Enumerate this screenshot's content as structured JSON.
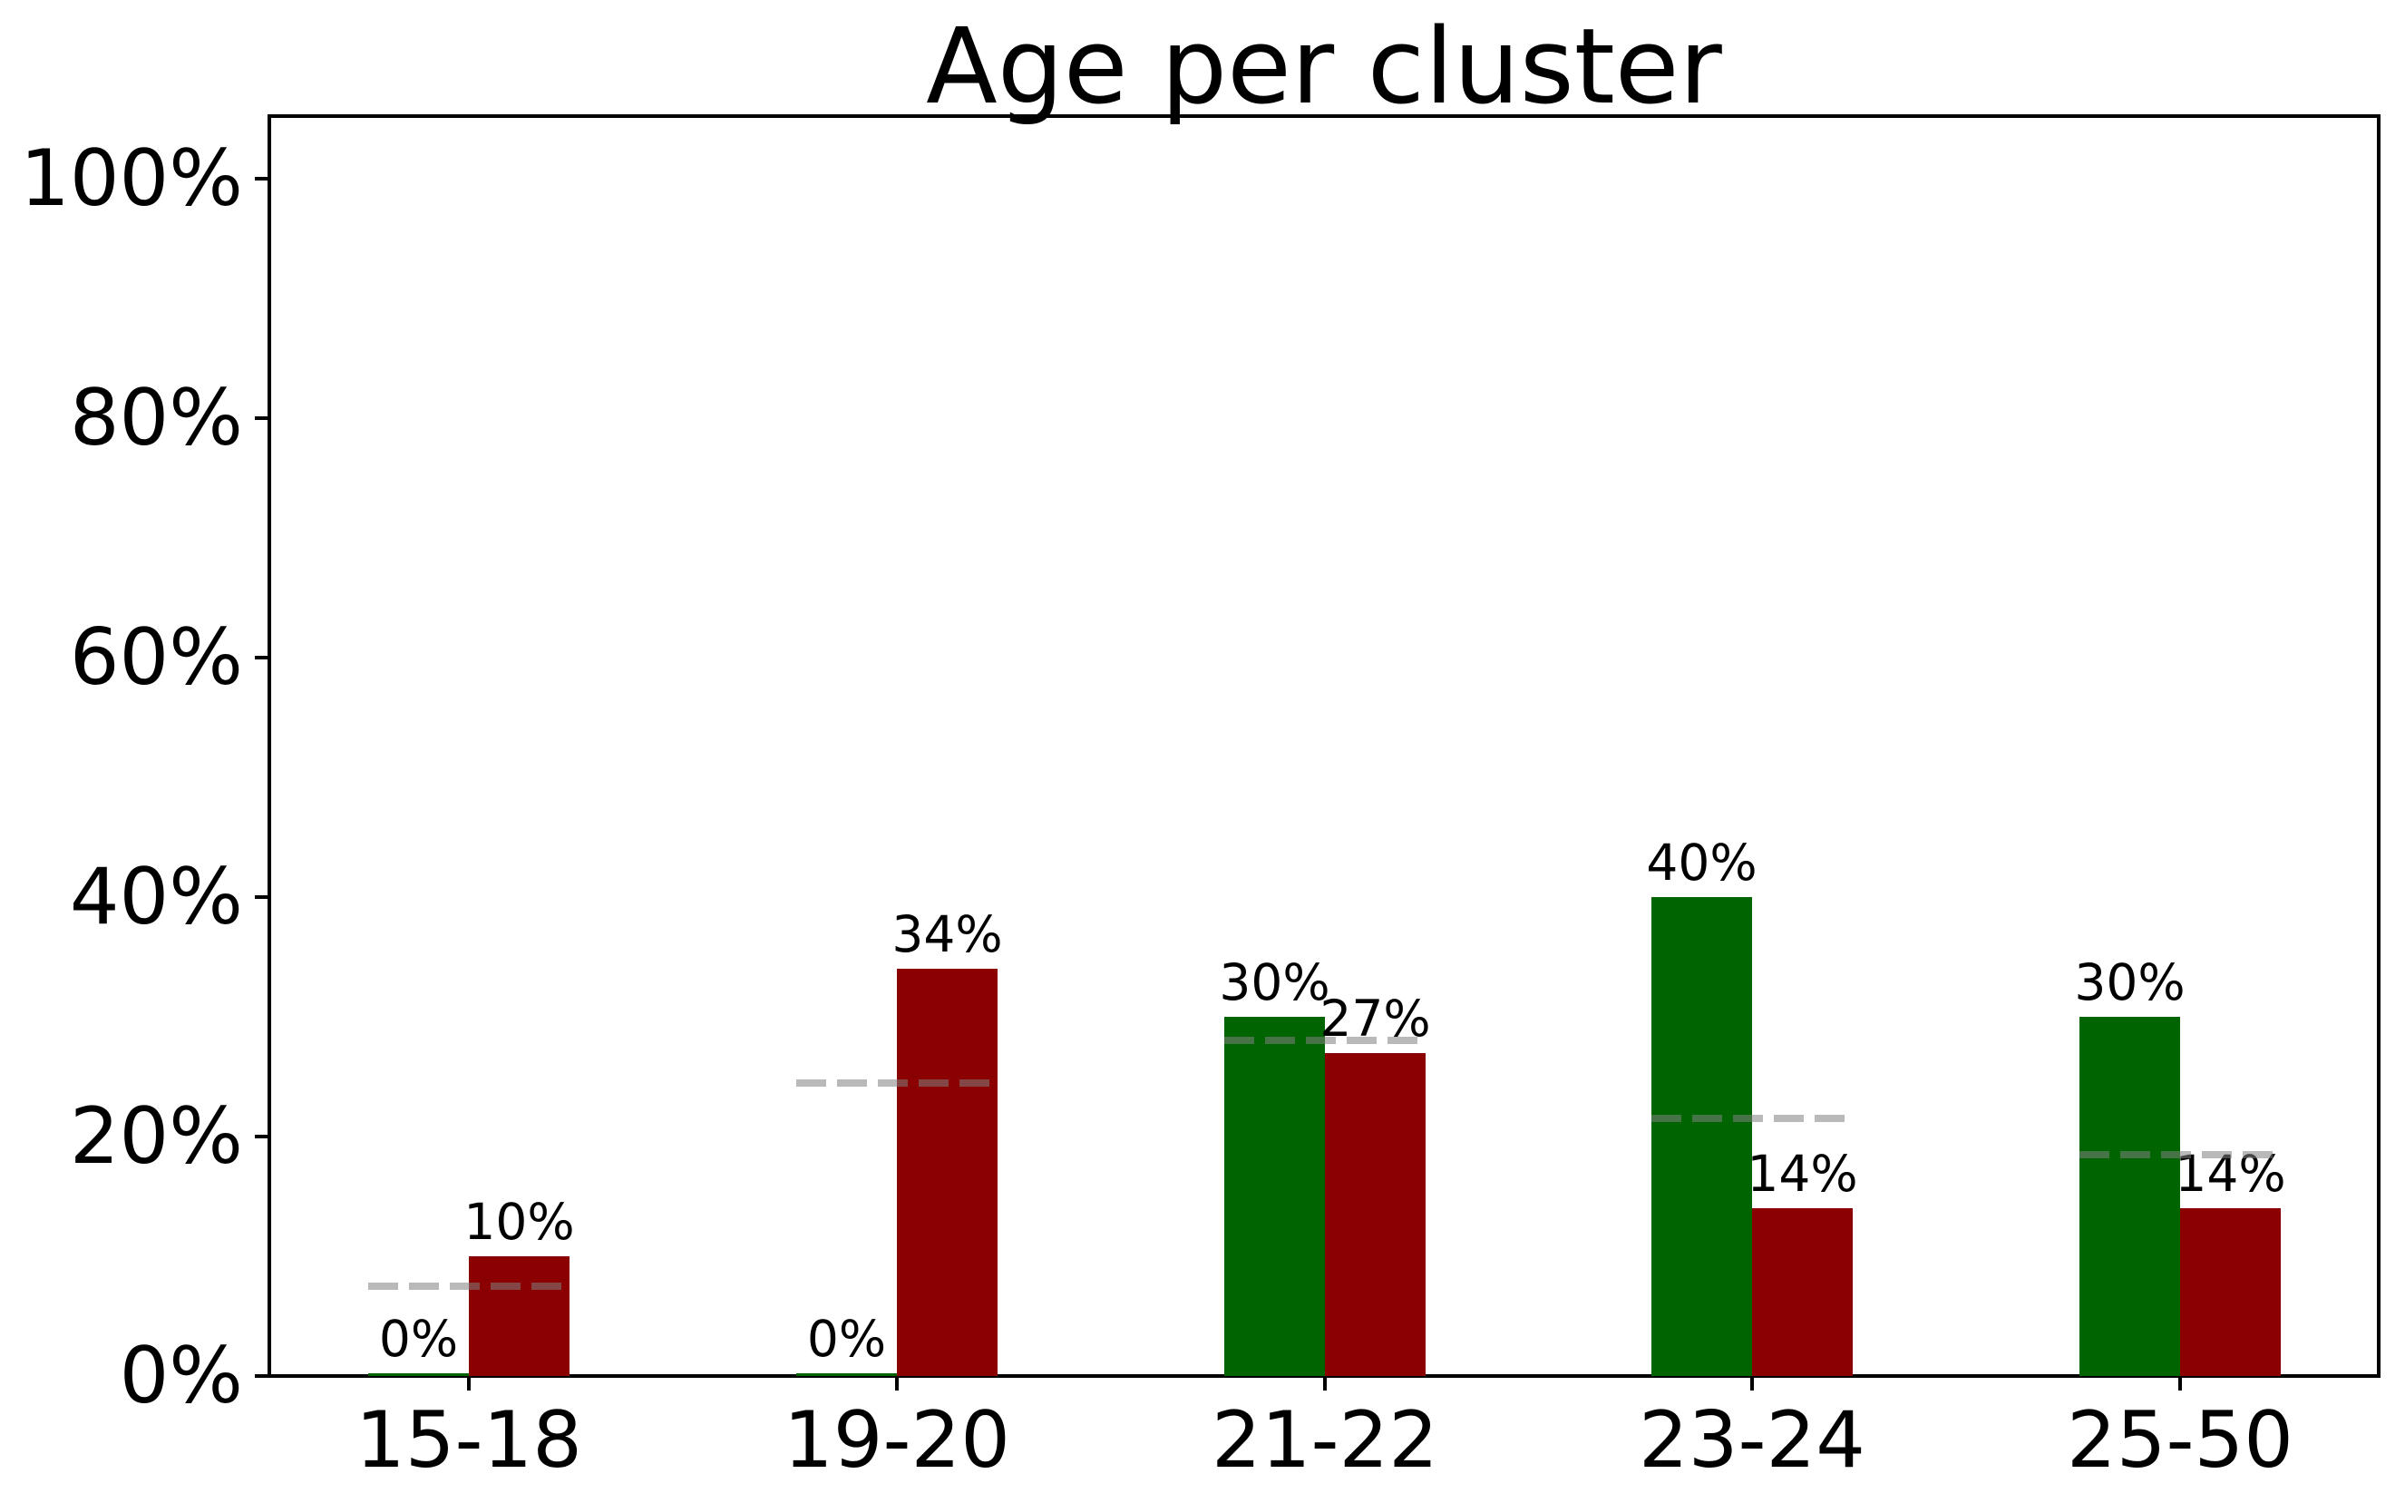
{
  "figure": {
    "background": "#ffffff"
  },
  "chart_data": {
    "type": "bar",
    "title": "Age per cluster",
    "categories": [
      "15-18",
      "19-20",
      "21-22",
      "23-24",
      "25-50"
    ],
    "series": [
      {
        "name": "cluster-green",
        "color": "#006400",
        "values": [
          0,
          0,
          30,
          40,
          30
        ],
        "labels": [
          "0%",
          "0%",
          "30%",
          "40%",
          "30%"
        ]
      },
      {
        "name": "cluster-dark-red",
        "color": "#8b0000",
        "values": [
          10,
          34,
          27,
          14,
          14
        ],
        "labels": [
          "10%",
          "34%",
          "27%",
          "14%",
          "14%"
        ]
      }
    ],
    "reference_lines": {
      "style": "dashed",
      "color": "#808080",
      "opacity": 0.55,
      "values_pct": [
        7.5,
        24.5,
        28,
        21.5,
        18.5
      ]
    },
    "y_ticks": [
      {
        "value": 0,
        "label": "0%"
      },
      {
        "value": 20,
        "label": "20%"
      },
      {
        "value": 40,
        "label": "40%"
      },
      {
        "value": 60,
        "label": "60%"
      },
      {
        "value": 80,
        "label": "80%"
      },
      {
        "value": 100,
        "label": "100%"
      }
    ],
    "ylim": [
      0,
      105
    ],
    "xlabel": "",
    "ylabel": "",
    "grid": false,
    "legend": null,
    "unit": "%"
  }
}
